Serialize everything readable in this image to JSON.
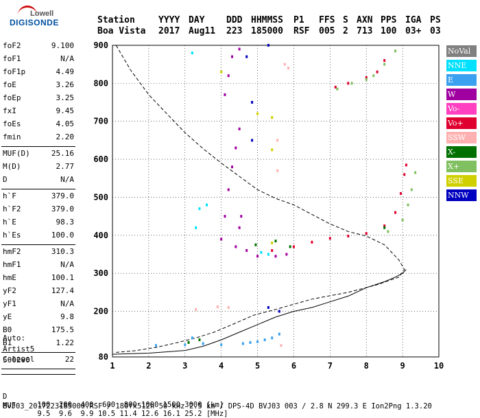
{
  "logo": {
    "line1": "Lowell",
    "line2": "DIGISONDE"
  },
  "header": {
    "labels": [
      "Station",
      "YYYY",
      "DAY",
      "DDD",
      "HHMMSS",
      "P1",
      "FFS",
      "S",
      "AXN",
      "PPS",
      "IGA",
      "PS"
    ],
    "values": [
      "Boa Vista",
      "2017",
      "Aug11",
      "223",
      "185000",
      "RSF",
      "005",
      "2",
      "713",
      "100",
      "03+",
      "03"
    ]
  },
  "params": {
    "group1": [
      {
        "name": "foF2",
        "value": "9.100"
      },
      {
        "name": "foF1",
        "value": "N/A"
      },
      {
        "name": "foF1p",
        "value": "4.49"
      },
      {
        "name": "foE",
        "value": "3.26"
      },
      {
        "name": "foEp",
        "value": "3.25"
      },
      {
        "name": "fxI",
        "value": "9.45"
      },
      {
        "name": "foEs",
        "value": "4.05"
      },
      {
        "name": "fmin",
        "value": "2.20"
      }
    ],
    "group2": [
      {
        "name": "MUF(D)",
        "value": "25.16"
      },
      {
        "name": "M(D)",
        "value": "2.77"
      },
      {
        "name": "D",
        "value": "N/A"
      }
    ],
    "group3": [
      {
        "name": "h`F",
        "value": "379.0"
      },
      {
        "name": "h`F2",
        "value": "379.0"
      },
      {
        "name": "h`E",
        "value": "98.3"
      },
      {
        "name": "h`Es",
        "value": "100.0"
      }
    ],
    "group4": [
      {
        "name": "hmF2",
        "value": "310.3"
      },
      {
        "name": "hmF1",
        "value": "N/A"
      },
      {
        "name": "hmE",
        "value": "100.1"
      },
      {
        "name": "yF2",
        "value": "127.4"
      },
      {
        "name": "yF1",
        "value": "N/A"
      },
      {
        "name": "yE",
        "value": "9.8"
      },
      {
        "name": "B0",
        "value": "175.5"
      },
      {
        "name": "B1",
        "value": "1.22"
      }
    ],
    "group5": [
      {
        "name": "C-level",
        "value": "22"
      }
    ]
  },
  "misc": {
    "auto_label": "Auto:",
    "artist": "Artist5",
    "version": "500200"
  },
  "legend": [
    {
      "label": "NoVal",
      "color": "#808080",
      "text": "#ffffff"
    },
    {
      "label": "NNE",
      "color": "#00e0ff",
      "text": "#ffffff"
    },
    {
      "label": "E",
      "color": "#3aa0f0",
      "text": "#ffffff"
    },
    {
      "label": "W",
      "color": "#a000a0",
      "text": "#ffffff"
    },
    {
      "label": "Vo-",
      "color": "#ff40c0",
      "text": "#ffffff"
    },
    {
      "label": "Vo+",
      "color": "#e00030",
      "text": "#ffffff"
    },
    {
      "label": "SSW",
      "color": "#ffb0b0",
      "text": "#ffffff"
    },
    {
      "label": "X-",
      "color": "#007000",
      "text": "#ffffff"
    },
    {
      "label": "X+",
      "color": "#80c060",
      "text": "#ffffff"
    },
    {
      "label": "SSE",
      "color": "#d0d000",
      "text": "#ffffff"
    },
    {
      "label": "NNW",
      "color": "#0000c0",
      "text": "#ffffff"
    }
  ],
  "footer": {
    "d_label": "D",
    "d_values": [
      "100",
      "200",
      "400",
      "600",
      "800",
      "1000",
      "1500",
      "3000"
    ],
    "d_unit": "[km]",
    "muf_label": "MUF",
    "muf_values": [
      "9.5",
      "9.6",
      "9.9",
      "10.5",
      "11.4",
      "12.6",
      "16.1",
      "25.2"
    ],
    "muf_unit": "[MHz]",
    "file_line": "BVJ03_2017223185000.RSF / 180fx512h 50 kHz 2.5 km / DPS-4D BVJ03 003 / 2.8 N 299.3 E Ion2Png 1.3.20"
  },
  "chart_data": {
    "type": "scatter",
    "xlim": [
      1,
      10
    ],
    "ylim": [
      80,
      900
    ],
    "x_ticks": [
      "1",
      "2",
      "3",
      "4",
      "5",
      "6",
      "7",
      "8",
      "9",
      "10"
    ],
    "y_ticks": [
      "80",
      "200",
      "300",
      "400",
      "500",
      "600",
      "700",
      "800",
      "900"
    ],
    "grid": true,
    "dashed_profile": [
      [
        1.1,
        900
      ],
      [
        1.5,
        835
      ],
      [
        2.0,
        770
      ],
      [
        2.5,
        720
      ],
      [
        3.0,
        670
      ],
      [
        3.5,
        628
      ],
      [
        4.0,
        590
      ],
      [
        4.5,
        555
      ],
      [
        5.0,
        520
      ],
      [
        5.5,
        497
      ],
      [
        6.0,
        480
      ],
      [
        6.5,
        455
      ],
      [
        7.0,
        430
      ],
      [
        7.5,
        410
      ],
      [
        8.0,
        398
      ],
      [
        8.5,
        375
      ],
      [
        8.9,
        335
      ],
      [
        9.05,
        310
      ],
      [
        8.9,
        290
      ],
      [
        8.3,
        270
      ],
      [
        7.5,
        250
      ],
      [
        6.5,
        232
      ],
      [
        5.5,
        205
      ],
      [
        4.9,
        190
      ],
      [
        4.3,
        165
      ],
      [
        3.8,
        145
      ],
      [
        3.3,
        130
      ],
      [
        2.8,
        118
      ],
      [
        2.2,
        105
      ],
      [
        1.6,
        96
      ],
      [
        1.1,
        92
      ]
    ],
    "solid_profile": [
      [
        1.0,
        87
      ],
      [
        2.0,
        90
      ],
      [
        3.0,
        97
      ],
      [
        3.5,
        108
      ],
      [
        4.0,
        125
      ],
      [
        4.5,
        145
      ],
      [
        5.0,
        165
      ],
      [
        5.5,
        185
      ],
      [
        6.0,
        200
      ],
      [
        6.5,
        210
      ],
      [
        7.0,
        225
      ],
      [
        7.5,
        240
      ],
      [
        8.0,
        262
      ],
      [
        8.5,
        278
      ],
      [
        8.8,
        290
      ],
      [
        9.0,
        300
      ],
      [
        9.1,
        310
      ]
    ],
    "series": [
      {
        "name": "Vo+",
        "points": [
          [
            5.4,
            360
          ],
          [
            6.0,
            370
          ],
          [
            6.5,
            382
          ],
          [
            7.0,
            392
          ],
          [
            7.5,
            398
          ],
          [
            8.0,
            405
          ],
          [
            8.5,
            425
          ],
          [
            8.8,
            460
          ],
          [
            8.95,
            510
          ],
          [
            9.05,
            560
          ],
          [
            9.1,
            585
          ],
          [
            7.15,
            790
          ],
          [
            7.5,
            800
          ],
          [
            8.0,
            815
          ],
          [
            8.3,
            830
          ],
          [
            8.5,
            860
          ]
        ]
      },
      {
        "name": "X+",
        "points": [
          [
            7.2,
            785
          ],
          [
            7.6,
            800
          ],
          [
            8.0,
            810
          ],
          [
            8.2,
            820
          ],
          [
            8.5,
            850
          ],
          [
            8.8,
            885
          ],
          [
            9.0,
            440
          ],
          [
            9.15,
            480
          ],
          [
            9.25,
            520
          ],
          [
            9.35,
            565
          ],
          [
            8.6,
            410
          ]
        ]
      },
      {
        "name": "W",
        "points": [
          [
            4.0,
            390
          ],
          [
            4.1,
            450
          ],
          [
            4.2,
            520
          ],
          [
            4.3,
            580
          ],
          [
            4.4,
            630
          ],
          [
            4.5,
            680
          ],
          [
            4.1,
            770
          ],
          [
            4.2,
            820
          ],
          [
            4.3,
            870
          ],
          [
            4.5,
            890
          ],
          [
            4.4,
            370
          ],
          [
            4.5,
            420
          ],
          [
            4.55,
            450
          ],
          [
            4.7,
            360
          ],
          [
            5.0,
            345
          ],
          [
            5.5,
            345
          ],
          [
            5.8,
            350
          ]
        ]
      },
      {
        "name": "E",
        "points": [
          [
            2.2,
            110
          ],
          [
            3.0,
            112
          ],
          [
            4.0,
            112
          ],
          [
            4.6,
            115
          ],
          [
            5.0,
            120
          ],
          [
            5.4,
            130
          ],
          [
            5.6,
            140
          ],
          [
            3.2,
            130
          ],
          [
            3.5,
            115
          ],
          [
            4.8,
            118
          ],
          [
            5.2,
            125
          ]
        ]
      },
      {
        "name": "NNE",
        "points": [
          [
            3.3,
            420
          ],
          [
            3.4,
            470
          ],
          [
            3.6,
            480
          ],
          [
            3.2,
            880
          ],
          [
            5.1,
            355
          ],
          [
            5.3,
            350
          ]
        ]
      },
      {
        "name": "NNW",
        "points": [
          [
            4.85,
            650
          ],
          [
            4.85,
            750
          ],
          [
            5.3,
            900
          ],
          [
            5.3,
            210
          ],
          [
            5.6,
            200
          ],
          [
            4.7,
            870
          ]
        ]
      },
      {
        "name": "SSW",
        "points": [
          [
            5.55,
            570
          ],
          [
            5.55,
            650
          ],
          [
            5.65,
            110
          ],
          [
            4.2,
            210
          ],
          [
            3.9,
            212
          ],
          [
            3.3,
            205
          ],
          [
            5.75,
            850
          ],
          [
            5.85,
            840
          ]
        ]
      },
      {
        "name": "SSE",
        "points": [
          [
            5.0,
            720
          ],
          [
            5.4,
            710
          ],
          [
            4.0,
            830
          ],
          [
            5.4,
            625
          ],
          [
            5.4,
            380
          ]
        ]
      },
      {
        "name": "X-",
        "points": [
          [
            5.5,
            385
          ],
          [
            4.95,
            375
          ],
          [
            5.9,
            370
          ],
          [
            3.4,
            125
          ],
          [
            3.1,
            118
          ],
          [
            8.5,
            420
          ]
        ]
      }
    ]
  }
}
